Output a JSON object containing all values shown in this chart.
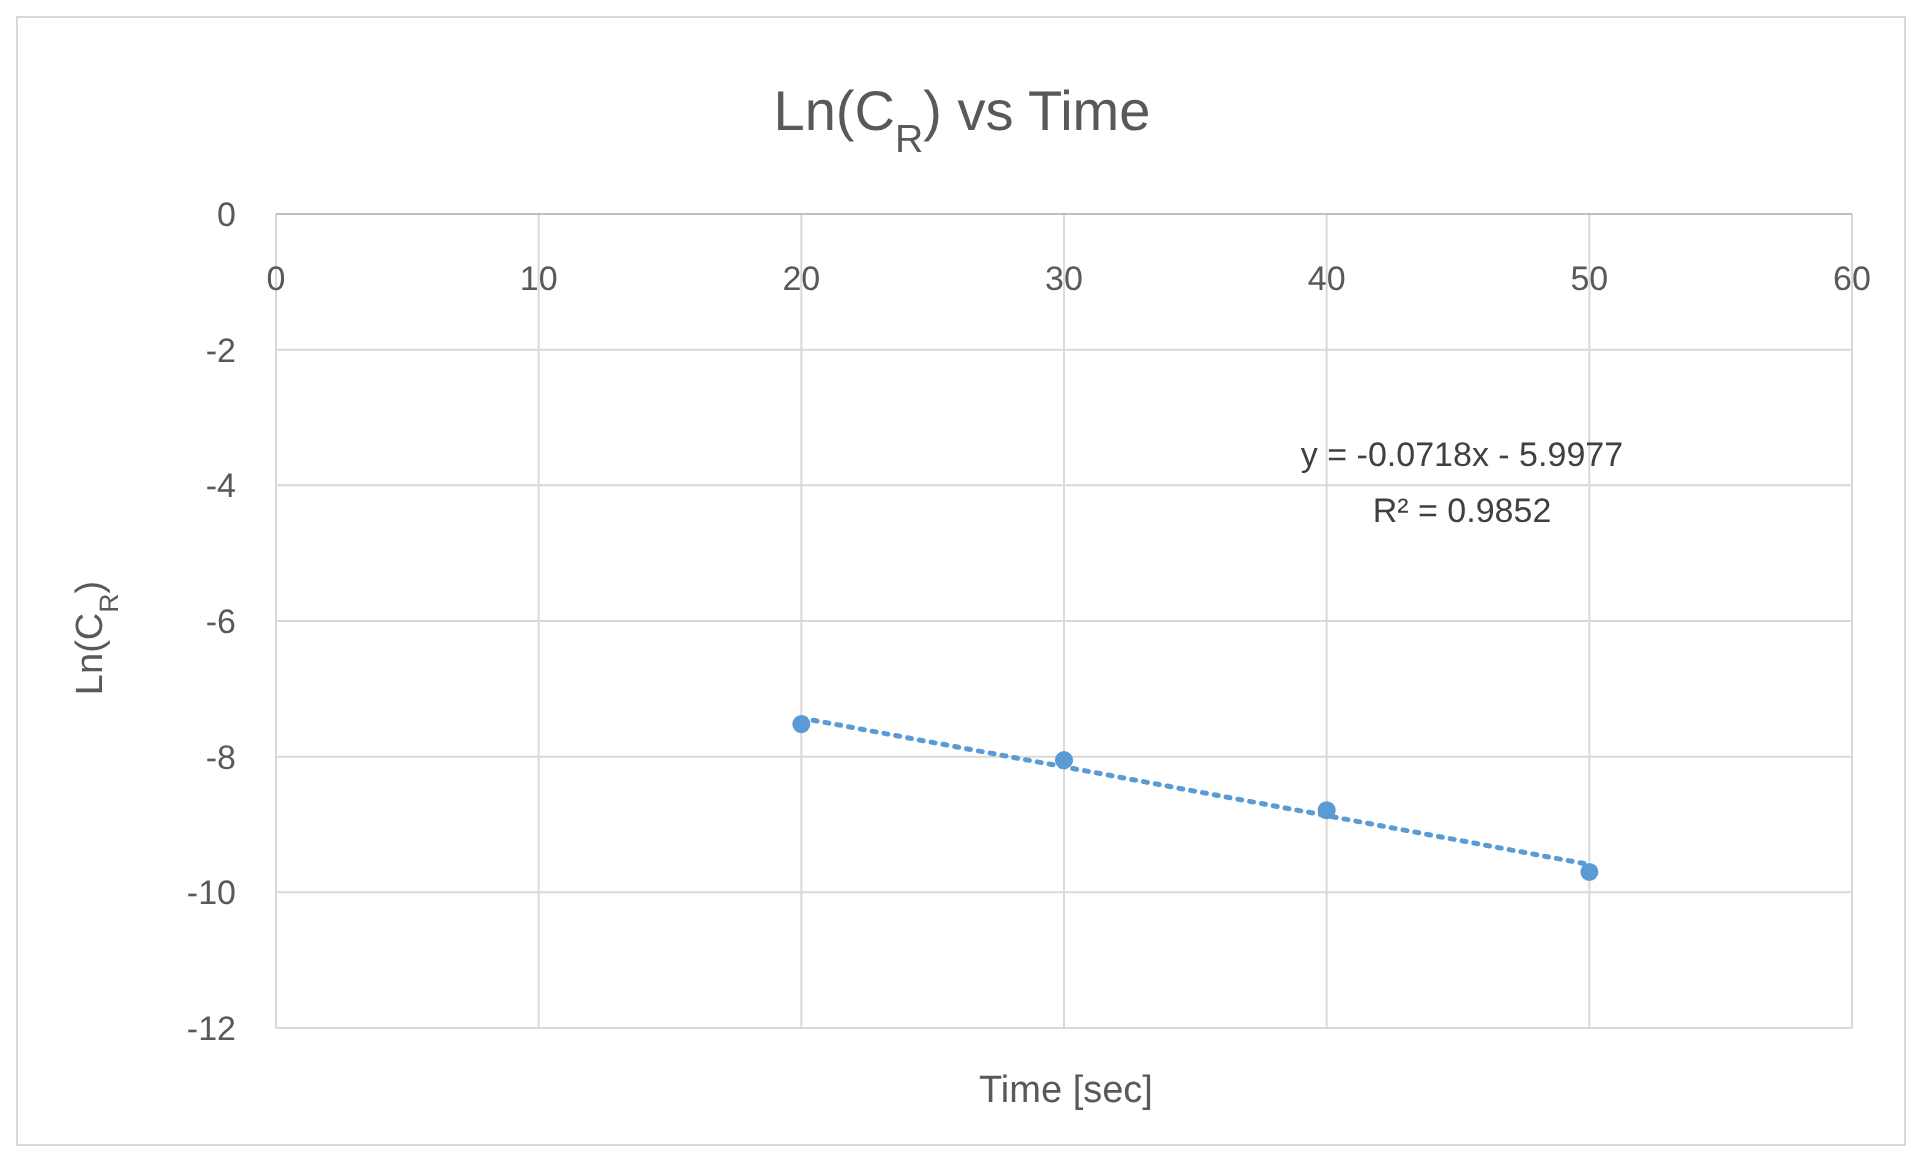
{
  "chart_data": {
    "type": "scatter",
    "title": "Ln(C$_{R}$) vs Time",
    "xlabel": "Time [sec]",
    "ylabel": "Ln(C$_{R}$)",
    "series": [
      {
        "color": "#5b9bd5",
        "marker": "circle",
        "x": [
          20,
          30,
          40,
          50
        ],
        "values": [
          -7.52,
          -8.05,
          -8.79,
          -9.7
        ]
      },
      {
        "type": "line",
        "color": "#5b9bd5",
        "marker": "none",
        "line_style": "dotted",
        "x": [
          20,
          50
        ],
        "values": [
          -7.43,
          -9.59
        ]
      }
    ],
    "xlim": [
      0,
      60
    ],
    "xticks": [
      0,
      10,
      20,
      30,
      40,
      50,
      60
    ],
    "ylim": [
      -12,
      0
    ],
    "yticks": [
      -12,
      -10,
      -8,
      -6,
      -4,
      -2,
      0
    ],
    "grid": true,
    "legend": false,
    "annotations": [
      "y = -0.0718x - 5.9977",
      "R² = 0.9852"
    ]
  }
}
